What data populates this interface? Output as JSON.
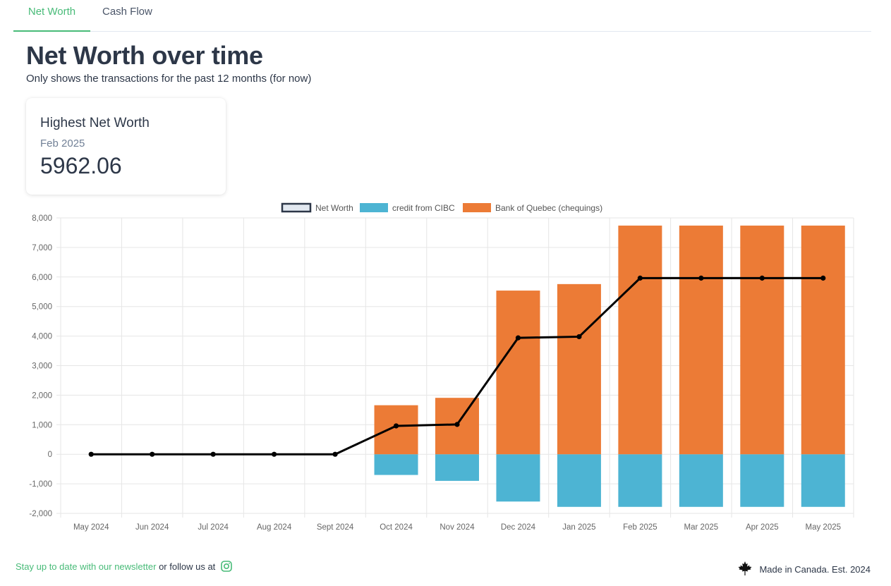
{
  "tabs": [
    {
      "label": "Net Worth",
      "active": true
    },
    {
      "label": "Cash Flow",
      "active": false
    }
  ],
  "header": {
    "title": "Net Worth over time",
    "subtitle": "Only shows the transactions for the past 12 months (for now)"
  },
  "stat": {
    "label": "Highest Net Worth",
    "help": "Feb 2025",
    "number": "5962.06"
  },
  "chart_data": {
    "type": "bar",
    "stacked": true,
    "categories": [
      "May 2024",
      "Jun 2024",
      "Jul 2024",
      "Aug 2024",
      "Sept 2024",
      "Oct 2024",
      "Nov 2024",
      "Dec 2024",
      "Jan 2025",
      "Feb 2025",
      "Mar 2025",
      "Apr 2025",
      "May 2025"
    ],
    "series": [
      {
        "name": "Net Worth",
        "type": "line",
        "color": "#000000",
        "values": [
          0,
          0,
          0,
          0,
          0,
          960,
          1010,
          3940,
          3980,
          5962.06,
          5962.06,
          5962.06,
          5962.06
        ]
      },
      {
        "name": "credit from CIBC",
        "type": "bar",
        "color": "#4db4d3",
        "values": [
          0,
          0,
          0,
          0,
          0,
          -700,
          -900,
          -1600,
          -1780,
          -1780,
          -1780,
          -1780,
          -1780
        ]
      },
      {
        "name": "Bank of Quebec (chequings)",
        "type": "bar",
        "color": "#ec7b36",
        "values": [
          0,
          0,
          0,
          0,
          0,
          1660,
          1910,
          5540,
          5760,
          7740,
          7740,
          7740,
          7740
        ]
      }
    ],
    "ylim": [
      -2000,
      8000
    ],
    "yticks": [
      -2000,
      -1000,
      0,
      1000,
      2000,
      3000,
      4000,
      5000,
      6000,
      7000,
      8000
    ],
    "ytick_labels": [
      "-2,000",
      "-1,000",
      "0",
      "1,000",
      "2,000",
      "3,000",
      "4,000",
      "5,000",
      "6,000",
      "7,000",
      "8,000"
    ],
    "grid": true,
    "legend": "top-center",
    "title": "",
    "xlabel": "",
    "ylabel": ""
  },
  "footer": {
    "newsletter_link": "Stay up to date with our newsletter",
    "follow_text": "or follow us at",
    "instagram_icon": "instagram-icon",
    "made_in": "Made in Canada. Est. 2024",
    "maple_icon": "maple-leaf-icon"
  }
}
